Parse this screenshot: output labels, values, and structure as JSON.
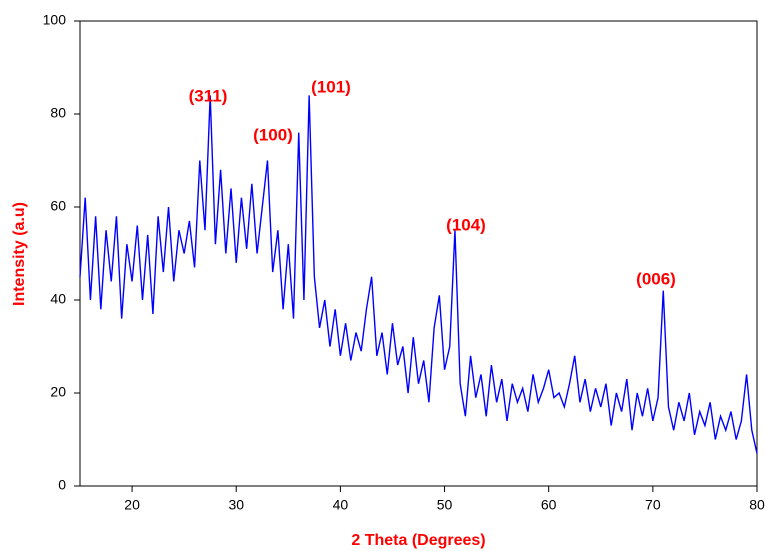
{
  "chart_data": {
    "type": "line",
    "xlabel": "2 Theta (Degrees)",
    "ylabel": "Intensity (a.u)",
    "x": [
      15,
      15.5,
      16,
      16.5,
      17,
      17.5,
      18,
      18.5,
      19,
      19.5,
      20,
      20.5,
      21,
      21.5,
      22,
      22.5,
      23,
      23.5,
      24,
      24.5,
      25,
      25.5,
      26,
      26.5,
      27,
      27.5,
      28,
      28.5,
      29,
      29.5,
      30,
      30.5,
      31,
      31.5,
      32,
      32.5,
      33,
      33.5,
      34,
      34.5,
      35,
      35.5,
      36,
      36.5,
      37,
      37.5,
      38,
      38.5,
      39,
      39.5,
      40,
      40.5,
      41,
      41.5,
      42,
      42.5,
      43,
      43.5,
      44,
      44.5,
      45,
      45.5,
      46,
      46.5,
      47,
      47.5,
      48,
      48.5,
      49,
      49.5,
      50,
      50.5,
      51,
      51.5,
      52,
      52.5,
      53,
      53.5,
      54,
      54.5,
      55,
      55.5,
      56,
      56.5,
      57,
      57.5,
      58,
      58.5,
      59,
      59.5,
      60,
      60.5,
      61,
      61.5,
      62,
      62.5,
      63,
      63.5,
      64,
      64.5,
      65,
      65.5,
      66,
      66.5,
      67,
      67.5,
      68,
      68.5,
      69,
      69.5,
      70,
      70.5,
      71,
      71.5,
      72,
      72.5,
      73,
      73.5,
      74,
      74.5,
      75,
      75.5,
      76,
      76.5,
      77,
      77.5,
      78,
      78.5,
      79,
      79.5,
      80
    ],
    "series": [
      {
        "color": "#0000ff",
        "values": [
          45,
          62,
          40,
          58,
          38,
          55,
          44,
          58,
          36,
          52,
          44,
          56,
          40,
          54,
          37,
          58,
          46,
          60,
          44,
          55,
          50,
          57,
          47,
          70,
          55,
          84,
          52,
          68,
          50,
          64,
          48,
          62,
          51,
          65,
          50,
          60,
          70,
          46,
          55,
          38,
          52,
          36,
          76,
          40,
          84,
          45,
          34,
          40,
          30,
          38,
          28,
          35,
          27,
          33,
          29,
          38,
          45,
          28,
          33,
          24,
          35,
          26,
          30,
          20,
          32,
          22,
          27,
          18,
          34,
          41,
          25,
          30,
          55,
          22,
          15,
          28,
          19,
          24,
          15,
          26,
          18,
          23,
          14,
          22,
          18,
          21,
          16,
          24,
          18,
          21,
          25,
          19,
          20,
          17,
          22,
          28,
          18,
          23,
          16,
          21,
          17,
          22,
          13,
          20,
          16,
          23,
          12,
          20,
          15,
          21,
          14,
          19,
          42,
          17,
          12,
          18,
          14,
          20,
          11,
          16,
          13,
          18,
          10,
          15,
          12,
          16,
          10,
          14,
          24,
          12,
          7
        ]
      }
    ],
    "annotations": [
      "(311)",
      "(100)",
      "(101)",
      "(104)",
      "(006)"
    ],
    "annotation_color": "#ff0000",
    "axis_label_color": "#ff0000",
    "xlim": [
      15,
      80
    ],
    "xticks": [
      20,
      30,
      40,
      50,
      60,
      70,
      80
    ],
    "ylim": [
      0,
      100
    ],
    "yticks": [
      0,
      20,
      40,
      60,
      80,
      100
    ]
  }
}
